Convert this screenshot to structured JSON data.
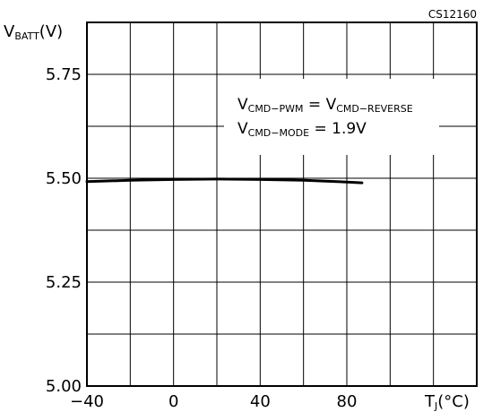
{
  "figure_id": "CS12160",
  "chart_data": {
    "type": "line",
    "ylabel_main": "V",
    "ylabel_sub": "BATT",
    "ylabel_unit": "(V)",
    "xlabel_main": "T",
    "xlabel_sub": "J",
    "xlabel_unit": "(°C)",
    "xlim": [
      -40,
      140
    ],
    "ylim": [
      5.0,
      5.875
    ],
    "grid": true,
    "x_ticks": [
      -40,
      0,
      40,
      80
    ],
    "x_tick_labels": [
      "−40",
      "0",
      "40",
      "80"
    ],
    "y_ticks": [
      5.0,
      5.25,
      5.5,
      5.75
    ],
    "y_tick_labels": [
      "5.00",
      "5.25",
      "5.50",
      "5.75"
    ],
    "x_gridlines": [
      -40,
      -20,
      0,
      20,
      40,
      60,
      80,
      100,
      120,
      140
    ],
    "y_gridlines": [
      5.0,
      5.125,
      5.25,
      5.375,
      5.5,
      5.625,
      5.75,
      5.875
    ],
    "series": [
      {
        "x": [
          -40,
          -20,
          0,
          20,
          40,
          60,
          80,
          87
        ],
        "y": [
          5.492,
          5.495,
          5.497,
          5.498,
          5.497,
          5.495,
          5.491,
          5.489
        ]
      }
    ],
    "annotation": {
      "line1": {
        "v1": "V",
        "s1": "CMD−PWM",
        "eq": " = ",
        "v2": "V",
        "s2": "CMD−REVERSE"
      },
      "line2": {
        "v1": "V",
        "s1": "CMD−MODE",
        "eq": " = ",
        "value": "1.9V"
      }
    }
  }
}
